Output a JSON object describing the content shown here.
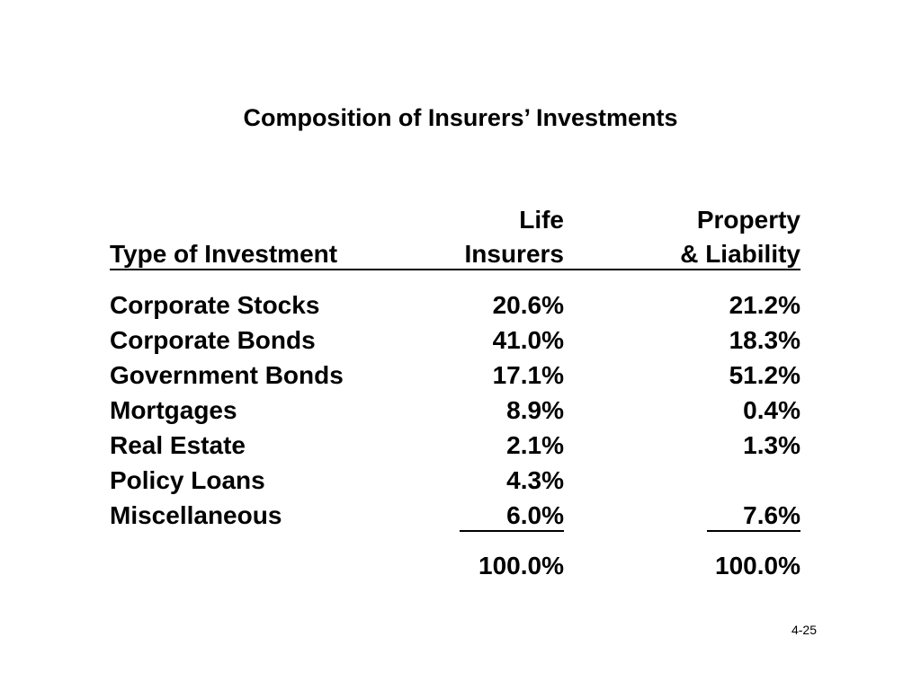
{
  "title": "Composition of Insurers’ Investments",
  "table": {
    "headers": {
      "type_col": "Type of Investment",
      "life_line1": "Life",
      "life_line2": "Insurers",
      "prop_line1": "Property",
      "prop_line2": "& Liability"
    },
    "rows": [
      {
        "type": "Corporate Stocks",
        "life": "20.6%",
        "property": "21.2%"
      },
      {
        "type": "Corporate Bonds",
        "life": "41.0%",
        "property": "18.3%"
      },
      {
        "type": "Government Bonds",
        "life": "17.1%",
        "property": "51.2%"
      },
      {
        "type": "Mortgages",
        "life": "8.9%",
        "property": "0.4%"
      },
      {
        "type": "Real Estate",
        "life": "2.1%",
        "property": "1.3%"
      },
      {
        "type": "Policy Loans",
        "life": "4.3%",
        "property": ""
      },
      {
        "type": "Miscellaneous",
        "life": "6.0%",
        "property": "7.6%"
      }
    ],
    "totals": {
      "life": "100.0%",
      "property": "100.0%"
    }
  },
  "page_number": "4-25"
}
